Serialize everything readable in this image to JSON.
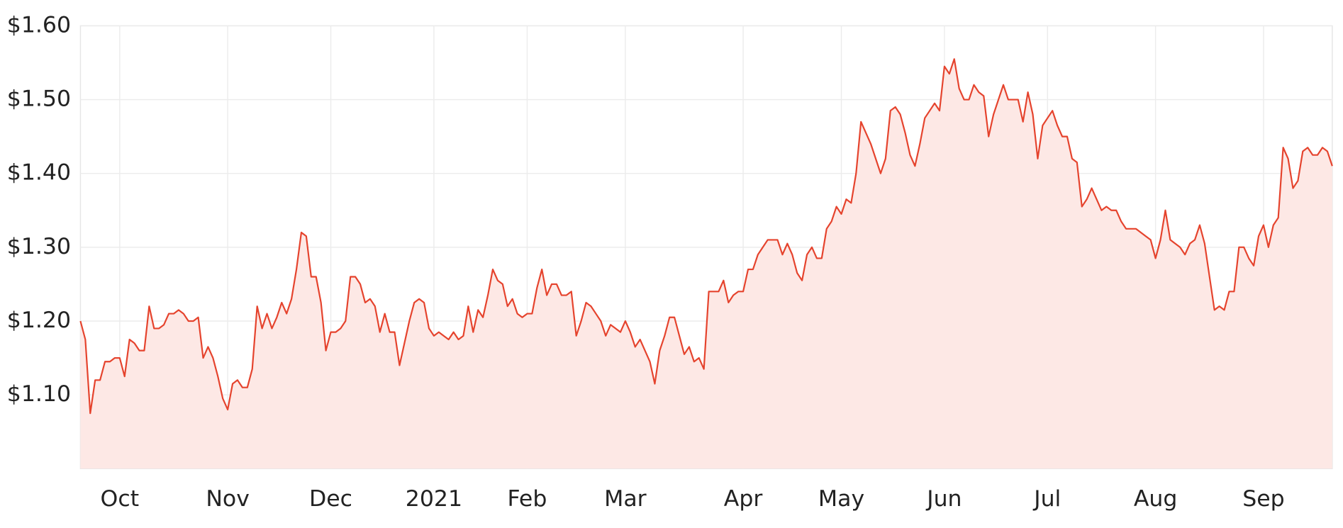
{
  "chart_data": {
    "type": "area",
    "categories": [
      null,
      null,
      null,
      null,
      null,
      null,
      null,
      null,
      "Oct",
      null,
      null,
      null,
      null,
      null,
      null,
      null,
      null,
      null,
      null,
      null,
      null,
      null,
      null,
      null,
      null,
      null,
      null,
      null,
      null,
      null,
      "Nov",
      null,
      null,
      null,
      null,
      null,
      null,
      null,
      null,
      null,
      null,
      null,
      null,
      null,
      null,
      null,
      null,
      null,
      null,
      null,
      null,
      "Dec",
      null,
      null,
      null,
      null,
      null,
      null,
      null,
      null,
      null,
      null,
      null,
      null,
      null,
      null,
      null,
      null,
      null,
      null,
      null,
      null,
      "2021",
      null,
      null,
      null,
      null,
      null,
      null,
      null,
      null,
      null,
      null,
      null,
      null,
      null,
      null,
      null,
      null,
      null,
      null,
      "Feb",
      null,
      null,
      null,
      null,
      null,
      null,
      null,
      null,
      null,
      null,
      null,
      null,
      null,
      null,
      null,
      null,
      null,
      null,
      null,
      "Mar",
      null,
      null,
      null,
      null,
      null,
      null,
      null,
      null,
      null,
      null,
      null,
      null,
      null,
      null,
      null,
      null,
      null,
      null,
      null,
      null,
      null,
      null,
      null,
      "Apr",
      null,
      null,
      null,
      null,
      null,
      null,
      null,
      null,
      null,
      null,
      null,
      null,
      null,
      null,
      null,
      null,
      null,
      null,
      null,
      "May",
      null,
      null,
      null,
      null,
      null,
      null,
      null,
      null,
      null,
      null,
      null,
      null,
      null,
      null,
      null,
      null,
      null,
      null,
      null,
      null,
      "Jun",
      null,
      null,
      null,
      null,
      null,
      null,
      null,
      null,
      null,
      null,
      null,
      null,
      null,
      null,
      null,
      null,
      null,
      null,
      null,
      null,
      "Jul",
      null,
      null,
      null,
      null,
      null,
      null,
      null,
      null,
      null,
      null,
      null,
      null,
      null,
      null,
      null,
      null,
      null,
      null,
      null,
      null,
      null,
      "Aug",
      null,
      null,
      null,
      null,
      null,
      null,
      null,
      null,
      null,
      null,
      null,
      null,
      null,
      null,
      null,
      null,
      null,
      null,
      null,
      null,
      null,
      "Sep",
      null,
      null,
      null,
      null,
      null,
      null,
      null,
      null,
      null,
      null,
      null,
      null,
      null,
      null
    ],
    "series": [
      {
        "color": "#e5432d",
        "area_color": "#fde8e5",
        "values": [
          1.2,
          1.175,
          1.075,
          1.12,
          1.12,
          1.145,
          1.145,
          1.15,
          1.15,
          1.125,
          1.175,
          1.17,
          1.16,
          1.16,
          1.22,
          1.19,
          1.19,
          1.195,
          1.21,
          1.21,
          1.215,
          1.21,
          1.2,
          1.2,
          1.205,
          1.15,
          1.165,
          1.15,
          1.125,
          1.095,
          1.08,
          1.115,
          1.12,
          1.11,
          1.11,
          1.135,
          1.22,
          1.19,
          1.21,
          1.19,
          1.205,
          1.225,
          1.21,
          1.23,
          1.27,
          1.32,
          1.315,
          1.26,
          1.26,
          1.225,
          1.16,
          1.185,
          1.185,
          1.19,
          1.2,
          1.26,
          1.26,
          1.25,
          1.225,
          1.23,
          1.22,
          1.185,
          1.21,
          1.185,
          1.185,
          1.14,
          1.17,
          1.2,
          1.225,
          1.23,
          1.225,
          1.19,
          1.18,
          1.185,
          1.18,
          1.175,
          1.185,
          1.175,
          1.18,
          1.22,
          1.185,
          1.215,
          1.205,
          1.235,
          1.27,
          1.255,
          1.25,
          1.22,
          1.23,
          1.21,
          1.205,
          1.21,
          1.21,
          1.245,
          1.27,
          1.235,
          1.25,
          1.25,
          1.235,
          1.235,
          1.24,
          1.18,
          1.2,
          1.225,
          1.22,
          1.21,
          1.2,
          1.18,
          1.195,
          1.19,
          1.185,
          1.2,
          1.185,
          1.165,
          1.175,
          1.16,
          1.145,
          1.115,
          1.16,
          1.18,
          1.205,
          1.205,
          1.18,
          1.155,
          1.165,
          1.145,
          1.15,
          1.135,
          1.24,
          1.24,
          1.24,
          1.255,
          1.225,
          1.235,
          1.24,
          1.24,
          1.27,
          1.27,
          1.29,
          1.3,
          1.31,
          1.31,
          1.31,
          1.29,
          1.305,
          1.29,
          1.265,
          1.255,
          1.29,
          1.3,
          1.285,
          1.285,
          1.325,
          1.335,
          1.355,
          1.345,
          1.365,
          1.36,
          1.4,
          1.47,
          1.455,
          1.44,
          1.42,
          1.4,
          1.42,
          1.485,
          1.49,
          1.48,
          1.455,
          1.425,
          1.41,
          1.44,
          1.475,
          1.485,
          1.495,
          1.485,
          1.545,
          1.535,
          1.555,
          1.515,
          1.5,
          1.5,
          1.52,
          1.51,
          1.505,
          1.45,
          1.48,
          1.5,
          1.52,
          1.5,
          1.5,
          1.5,
          1.47,
          1.51,
          1.48,
          1.42,
          1.465,
          1.475,
          1.485,
          1.465,
          1.45,
          1.45,
          1.42,
          1.415,
          1.355,
          1.365,
          1.38,
          1.365,
          1.35,
          1.355,
          1.35,
          1.35,
          1.335,
          1.325,
          1.325,
          1.325,
          1.32,
          1.315,
          1.31,
          1.285,
          1.31,
          1.35,
          1.31,
          1.305,
          1.3,
          1.29,
          1.305,
          1.31,
          1.33,
          1.305,
          1.26,
          1.215,
          1.22,
          1.215,
          1.24,
          1.24,
          1.3,
          1.3,
          1.285,
          1.275,
          1.315,
          1.33,
          1.3,
          1.33,
          1.34,
          1.435,
          1.42,
          1.38,
          1.39,
          1.43,
          1.435,
          1.425,
          1.425,
          1.435,
          1.43,
          1.41
        ]
      }
    ],
    "ylim": [
      1.0,
      1.6
    ],
    "yticks": [
      {
        "value": 1.1,
        "label": "$1.10"
      },
      {
        "value": 1.2,
        "label": "$1.20"
      },
      {
        "value": 1.3,
        "label": "$1.30"
      },
      {
        "value": 1.4,
        "label": "$1.40"
      },
      {
        "value": 1.5,
        "label": "$1.50"
      },
      {
        "value": 1.6,
        "label": "$1.60"
      }
    ],
    "grid": true
  }
}
